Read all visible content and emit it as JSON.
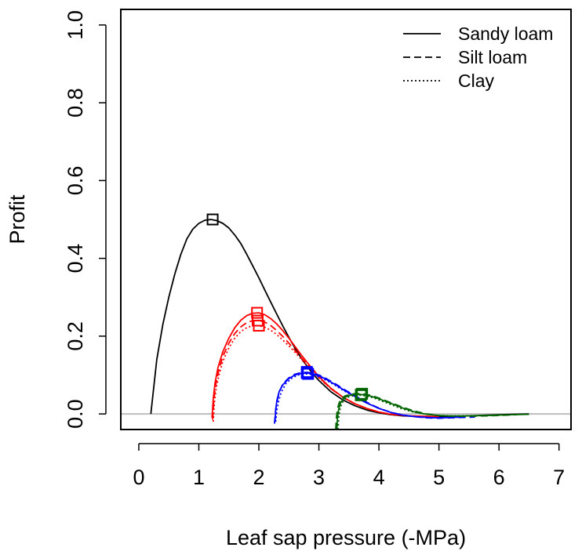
{
  "chart_data": {
    "type": "line",
    "title": "",
    "xlabel": "Leaf sap pressure (-MPa)",
    "ylabel": "Profit",
    "xlim": [
      -0.3,
      7.2
    ],
    "ylim": [
      -0.04,
      1.04
    ],
    "x_ticks": [
      0,
      1,
      2,
      3,
      4,
      5,
      6,
      7
    ],
    "y_ticks": [
      0.0,
      0.2,
      0.4,
      0.6,
      0.8,
      1.0
    ],
    "x_tick_labels": [
      "0",
      "1",
      "2",
      "3",
      "4",
      "5",
      "6",
      "7"
    ],
    "y_tick_labels": [
      "0.0",
      "0.2",
      "0.4",
      "0.6",
      "0.8",
      "1.0"
    ],
    "reference_line": {
      "y": 0,
      "color": "#bebebe"
    },
    "grid": false,
    "legend": {
      "position": "top-right",
      "entries": [
        {
          "label": "Sandy loam",
          "linestyle": "solid"
        },
        {
          "label": "Silt loam",
          "linestyle": "dashed"
        },
        {
          "label": "Clay",
          "linestyle": "dotted"
        }
      ]
    },
    "colors": {
      "black": "#000000",
      "red": "#ff0000",
      "blue": "#0000ff",
      "green": "#006400"
    },
    "series": [
      {
        "color": "#000000",
        "linestyle": "solid",
        "optimum": [
          1.23,
          0.5
        ],
        "x": [
          0.2,
          0.3,
          0.4,
          0.5,
          0.6,
          0.7,
          0.8,
          0.9,
          1.0,
          1.1,
          1.2,
          1.3,
          1.4,
          1.5,
          1.6,
          1.7,
          1.8,
          1.9,
          2.0,
          2.1,
          2.2,
          2.3,
          2.4,
          2.5,
          2.6,
          2.7,
          2.8,
          2.9,
          3.0,
          3.2,
          3.4,
          3.6,
          3.8,
          4.0,
          4.2,
          4.4,
          4.6,
          4.8,
          5.0,
          5.2,
          5.5,
          5.8,
          6.0,
          6.2,
          6.5
        ],
        "y": [
          0.0,
          0.14,
          0.23,
          0.3,
          0.36,
          0.41,
          0.45,
          0.475,
          0.49,
          0.498,
          0.5,
          0.497,
          0.49,
          0.478,
          0.46,
          0.438,
          0.41,
          0.38,
          0.35,
          0.318,
          0.287,
          0.256,
          0.226,
          0.197,
          0.17,
          0.145,
          0.123,
          0.103,
          0.086,
          0.057,
          0.036,
          0.021,
          0.01,
          0.003,
          -0.002,
          -0.005,
          -0.006,
          -0.007,
          -0.007,
          -0.006,
          -0.005,
          -0.003,
          -0.002,
          -0.001,
          0.0
        ]
      },
      {
        "color": "#ff0000",
        "linestyle": "solid",
        "optimum": [
          1.97,
          0.26
        ],
        "x": [
          1.22,
          1.24,
          1.27,
          1.32,
          1.4,
          1.5,
          1.6,
          1.7,
          1.8,
          1.9,
          2.0,
          2.1,
          2.2,
          2.3,
          2.4,
          2.5,
          2.6,
          2.7,
          2.8,
          3.0,
          3.2,
          3.4,
          3.6,
          3.8,
          4.0,
          4.2,
          4.5,
          5.0
        ],
        "y": [
          -0.01,
          0.04,
          0.08,
          0.12,
          0.16,
          0.195,
          0.222,
          0.241,
          0.253,
          0.259,
          0.26,
          0.255,
          0.245,
          0.231,
          0.214,
          0.195,
          0.174,
          0.153,
          0.133,
          0.096,
          0.066,
          0.043,
          0.026,
          0.014,
          0.005,
          -0.001,
          -0.005,
          -0.007
        ]
      },
      {
        "color": "#ff0000",
        "linestyle": "dashed",
        "optimum": [
          1.98,
          0.24
        ],
        "x": [
          1.23,
          1.25,
          1.28,
          1.33,
          1.4,
          1.5,
          1.6,
          1.7,
          1.8,
          1.9,
          2.0,
          2.1,
          2.2,
          2.3,
          2.4,
          2.5,
          2.6,
          2.7,
          2.8,
          3.0,
          3.2,
          3.4,
          3.6,
          3.8,
          4.0,
          4.2,
          4.5,
          5.0
        ],
        "y": [
          -0.015,
          0.035,
          0.075,
          0.11,
          0.148,
          0.182,
          0.207,
          0.224,
          0.235,
          0.24,
          0.24,
          0.236,
          0.227,
          0.214,
          0.199,
          0.182,
          0.164,
          0.146,
          0.128,
          0.094,
          0.065,
          0.043,
          0.026,
          0.014,
          0.005,
          -0.001,
          -0.005,
          -0.007
        ]
      },
      {
        "color": "#ff0000",
        "linestyle": "dotted",
        "optimum": [
          2.0,
          0.227
        ],
        "x": [
          1.24,
          1.26,
          1.29,
          1.34,
          1.4,
          1.5,
          1.6,
          1.7,
          1.8,
          1.9,
          2.0,
          2.1,
          2.2,
          2.3,
          2.4,
          2.5,
          2.6,
          2.7,
          2.8,
          3.0,
          3.2,
          3.4,
          3.6,
          3.8,
          4.0,
          4.2,
          4.5,
          5.0
        ],
        "y": [
          -0.02,
          0.03,
          0.068,
          0.102,
          0.135,
          0.17,
          0.195,
          0.212,
          0.222,
          0.227,
          0.227,
          0.223,
          0.215,
          0.204,
          0.19,
          0.175,
          0.159,
          0.142,
          0.125,
          0.093,
          0.065,
          0.043,
          0.026,
          0.014,
          0.005,
          -0.001,
          -0.005,
          -0.007
        ]
      },
      {
        "color": "#0000ff",
        "linestyle": "solid",
        "optimum": [
          2.8,
          0.105
        ],
        "x": [
          2.27,
          2.28,
          2.3,
          2.34,
          2.4,
          2.5,
          2.6,
          2.7,
          2.8,
          2.9,
          3.0,
          3.1,
          3.2,
          3.3,
          3.4,
          3.5,
          3.6,
          3.7,
          3.8,
          3.9,
          4.0,
          4.2,
          4.4,
          4.6,
          4.8,
          5.0,
          5.2,
          5.4
        ],
        "y": [
          -0.02,
          0.01,
          0.035,
          0.058,
          0.075,
          0.091,
          0.1,
          0.104,
          0.105,
          0.103,
          0.098,
          0.091,
          0.082,
          0.073,
          0.063,
          0.054,
          0.045,
          0.036,
          0.028,
          0.021,
          0.014,
          0.004,
          -0.003,
          -0.007,
          -0.009,
          -0.01,
          -0.009,
          -0.008
        ]
      },
      {
        "color": "#0000ff",
        "linestyle": "dashed",
        "optimum": [
          2.8,
          0.108
        ],
        "x": [
          2.26,
          2.28,
          2.31,
          2.35,
          2.4,
          2.5,
          2.6,
          2.7,
          2.8,
          2.9,
          3.0,
          3.1,
          3.2,
          3.3,
          3.4,
          3.5,
          3.6,
          3.7,
          3.8,
          3.9,
          4.0,
          4.2,
          4.4,
          4.6,
          4.8,
          5.0,
          5.2,
          5.4,
          5.6
        ],
        "y": [
          -0.025,
          0.012,
          0.038,
          0.06,
          0.077,
          0.093,
          0.102,
          0.106,
          0.107,
          0.105,
          0.1,
          0.093,
          0.084,
          0.075,
          0.065,
          0.056,
          0.047,
          0.038,
          0.03,
          0.022,
          0.015,
          0.004,
          -0.003,
          -0.007,
          -0.01,
          -0.011,
          -0.01,
          -0.009,
          -0.008
        ]
      },
      {
        "color": "#0000ff",
        "linestyle": "dotted",
        "optimum": [
          2.82,
          0.103
        ],
        "x": [
          2.28,
          2.3,
          2.33,
          2.37,
          2.45,
          2.55,
          2.65,
          2.75,
          2.85,
          2.95,
          3.05,
          3.2,
          3.4,
          3.6,
          3.8,
          4.0,
          4.2,
          4.4,
          4.6,
          4.8,
          5.0,
          5.2
        ],
        "y": [
          -0.02,
          0.01,
          0.033,
          0.055,
          0.078,
          0.092,
          0.1,
          0.103,
          0.102,
          0.098,
          0.092,
          0.08,
          0.061,
          0.044,
          0.028,
          0.015,
          0.004,
          -0.003,
          -0.007,
          -0.009,
          -0.01,
          -0.009
        ]
      },
      {
        "color": "#006400",
        "linestyle": "solid",
        "optimum": [
          3.7,
          0.05
        ],
        "x": [
          3.3,
          3.31,
          3.33,
          3.36,
          3.4,
          3.45,
          3.5,
          3.55,
          3.6,
          3.65,
          3.7,
          3.75,
          3.8,
          3.9,
          4.0,
          4.1,
          4.2,
          4.3,
          4.4,
          4.5,
          4.6,
          4.8,
          5.0,
          5.2,
          5.5,
          5.8,
          6.0,
          6.2,
          6.5
        ],
        "y": [
          -0.04,
          -0.01,
          0.012,
          0.028,
          0.038,
          0.044,
          0.047,
          0.049,
          0.05,
          0.05,
          0.05,
          0.049,
          0.048,
          0.044,
          0.039,
          0.033,
          0.027,
          0.021,
          0.015,
          0.01,
          0.005,
          -0.001,
          -0.004,
          -0.005,
          -0.005,
          -0.004,
          -0.003,
          -0.002,
          -0.001
        ]
      },
      {
        "color": "#006400",
        "linestyle": "dashed",
        "optimum": [
          3.72,
          0.052
        ],
        "x": [
          3.28,
          3.29,
          3.31,
          3.34,
          3.38,
          3.43,
          3.5,
          3.55,
          3.6,
          3.65,
          3.7,
          3.75,
          3.8,
          3.9,
          4.0,
          4.1,
          4.2,
          4.3,
          4.4,
          4.5,
          4.6,
          4.8,
          5.0,
          5.2,
          5.5,
          5.8,
          6.0,
          6.3
        ],
        "y": [
          -0.04,
          -0.012,
          0.014,
          0.03,
          0.04,
          0.046,
          0.049,
          0.051,
          0.052,
          0.052,
          0.052,
          0.051,
          0.05,
          0.046,
          0.041,
          0.035,
          0.029,
          0.023,
          0.017,
          0.012,
          0.007,
          0.0,
          -0.004,
          -0.006,
          -0.006,
          -0.005,
          -0.004,
          -0.002
        ]
      },
      {
        "color": "#006400",
        "linestyle": "dotted",
        "optimum": [
          3.7,
          0.048
        ],
        "x": [
          3.32,
          3.33,
          3.35,
          3.38,
          3.42,
          3.47,
          3.52,
          3.58,
          3.64,
          3.7,
          3.76,
          3.85,
          3.95,
          4.05,
          4.15,
          4.25,
          4.35,
          4.45,
          4.6,
          4.8,
          5.0,
          5.3,
          5.6,
          6.0
        ],
        "y": [
          -0.04,
          -0.01,
          0.01,
          0.026,
          0.036,
          0.042,
          0.045,
          0.047,
          0.048,
          0.048,
          0.047,
          0.044,
          0.039,
          0.033,
          0.027,
          0.021,
          0.015,
          0.01,
          0.004,
          -0.001,
          -0.004,
          -0.005,
          -0.004,
          -0.003
        ]
      }
    ]
  }
}
